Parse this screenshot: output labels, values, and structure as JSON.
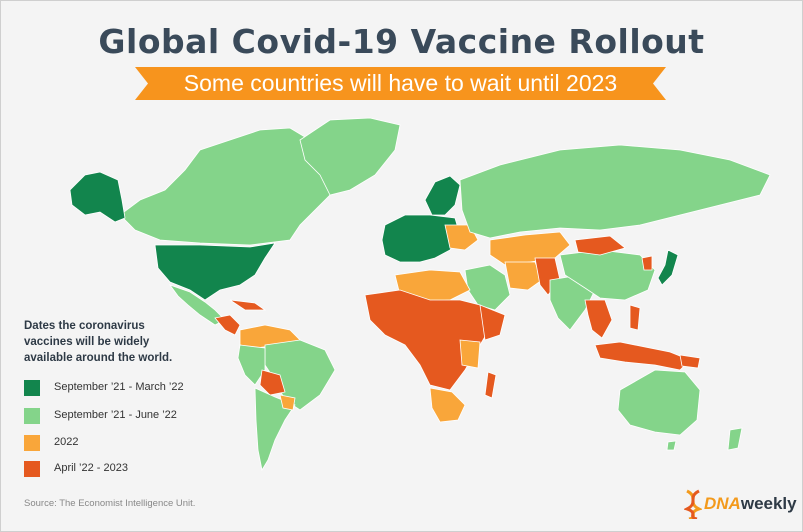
{
  "title": "Global  Covid-19 Vaccine  Rollout",
  "subtitle": "Some countries will have to wait until 2023",
  "legend": {
    "title": "Dates the coronavirus vaccines will be widely available around the world.",
    "items": [
      {
        "label": "September ’21 - March ’22",
        "color": "#12854d"
      },
      {
        "label": "September ’21 - June ’22",
        "color": "#84d48a"
      },
      {
        "label": "2022",
        "color": "#f9a63a"
      },
      {
        "label": "April ’22 - 2023",
        "color": "#e5591f"
      }
    ]
  },
  "source": "Source: The Economist Intelligence Unit.",
  "brand": {
    "prefix": "DNA",
    "suffix": "weekly",
    "icon": "dna-helix-icon"
  },
  "colors": {
    "dark_green": "#12854d",
    "light_green": "#84d48a",
    "orange": "#f9a63a",
    "red_orange": "#e5591f",
    "banner": "#f7941d",
    "title": "#3a4a5a"
  }
}
